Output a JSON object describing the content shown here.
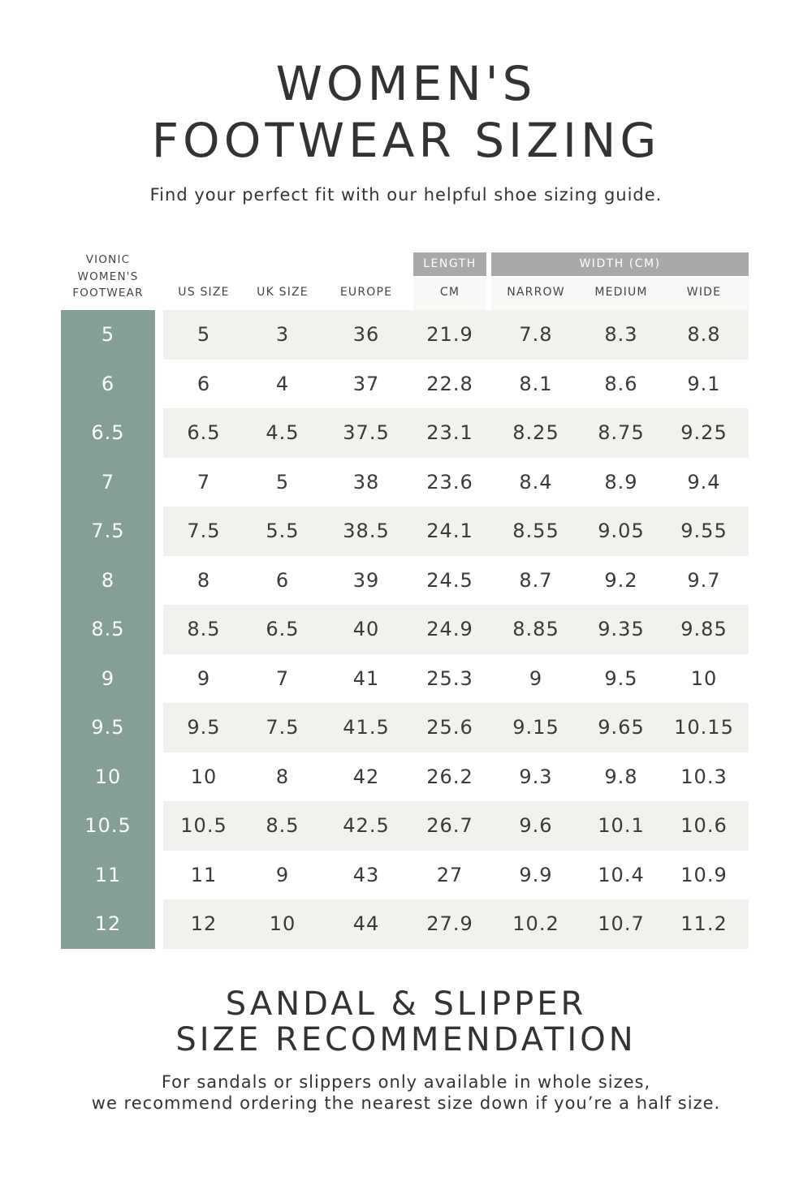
{
  "title": {
    "line1": "WOMEN'S",
    "line2": "FOOTWEAR SIZING"
  },
  "subtitle": "Find your perfect fit with our helpful shoe sizing guide.",
  "table": {
    "vionic_header": [
      "VIONIC",
      "WOMEN'S",
      "FOOTWEAR"
    ],
    "group_headers": {
      "length": "LENGTH",
      "width": "WIDTH (CM)"
    },
    "columns": [
      "US SIZE",
      "UK SIZE",
      "EUROPE",
      "CM",
      "NARROW",
      "MEDIUM",
      "WIDE"
    ],
    "rows": [
      {
        "vionic": "5",
        "cells": [
          "5",
          "3",
          "36",
          "21.9",
          "7.8",
          "8.3",
          "8.8"
        ]
      },
      {
        "vionic": "6",
        "cells": [
          "6",
          "4",
          "37",
          "22.8",
          "8.1",
          "8.6",
          "9.1"
        ]
      },
      {
        "vionic": "6.5",
        "cells": [
          "6.5",
          "4.5",
          "37.5",
          "23.1",
          "8.25",
          "8.75",
          "9.25"
        ]
      },
      {
        "vionic": "7",
        "cells": [
          "7",
          "5",
          "38",
          "23.6",
          "8.4",
          "8.9",
          "9.4"
        ]
      },
      {
        "vionic": "7.5",
        "cells": [
          "7.5",
          "5.5",
          "38.5",
          "24.1",
          "8.55",
          "9.05",
          "9.55"
        ]
      },
      {
        "vionic": "8",
        "cells": [
          "8",
          "6",
          "39",
          "24.5",
          "8.7",
          "9.2",
          "9.7"
        ]
      },
      {
        "vionic": "8.5",
        "cells": [
          "8.5",
          "6.5",
          "40",
          "24.9",
          "8.85",
          "9.35",
          "9.85"
        ]
      },
      {
        "vionic": "9",
        "cells": [
          "9",
          "7",
          "41",
          "25.3",
          "9",
          "9.5",
          "10"
        ]
      },
      {
        "vionic": "9.5",
        "cells": [
          "9.5",
          "7.5",
          "41.5",
          "25.6",
          "9.15",
          "9.65",
          "10.15"
        ]
      },
      {
        "vionic": "10",
        "cells": [
          "10",
          "8",
          "42",
          "26.2",
          "9.3",
          "9.8",
          "10.3"
        ]
      },
      {
        "vionic": "10.5",
        "cells": [
          "10.5",
          "8.5",
          "42.5",
          "26.7",
          "9.6",
          "10.1",
          "10.6"
        ]
      },
      {
        "vionic": "11",
        "cells": [
          "11",
          "9",
          "43",
          "27",
          "9.9",
          "10.4",
          "10.9"
        ]
      },
      {
        "vionic": "12",
        "cells": [
          "12",
          "10",
          "44",
          "27.9",
          "10.2",
          "10.7",
          "11.2"
        ]
      }
    ]
  },
  "recommendation": {
    "title_line1": "SANDAL & SLIPPER",
    "title_line2": "SIZE RECOMMENDATION",
    "text_line1": "For sandals or slippers only available in whole sizes,",
    "text_line2": "we recommend ordering the nearest size down if you’re a half size."
  },
  "colors": {
    "vionic_column": "#839f98",
    "header_bar": "#a9a9a9",
    "row_shade": "#f3f1ed",
    "text": "#3a3a3a"
  }
}
